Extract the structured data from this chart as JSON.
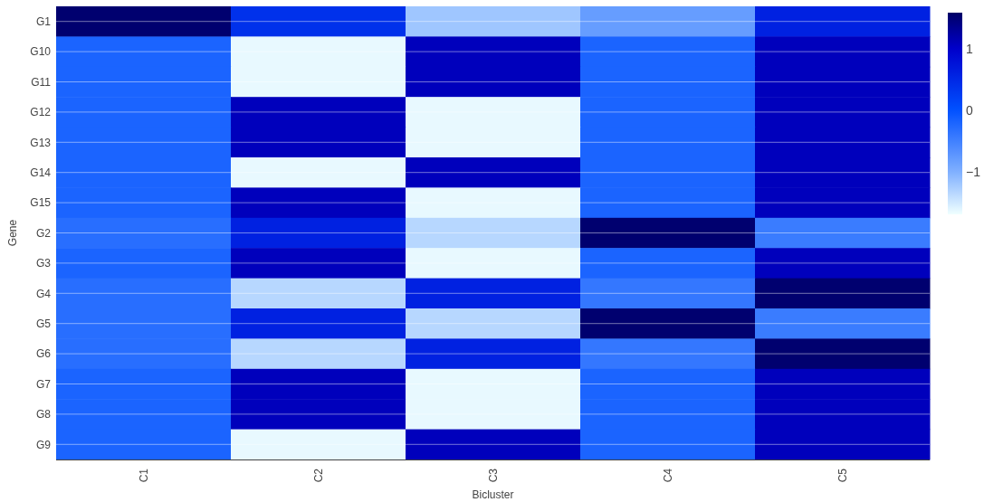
{
  "chart_data": {
    "type": "heatmap",
    "xlabel": "Bicluster",
    "ylabel": "Gene",
    "categories": [
      "C1",
      "C2",
      "C3",
      "C4",
      "C5"
    ],
    "y_categories": [
      "G1",
      "G10",
      "G11",
      "G12",
      "G13",
      "G14",
      "G15",
      "G2",
      "G3",
      "G4",
      "G5",
      "G6",
      "G7",
      "G8",
      "G9"
    ],
    "cells": [
      [
        1.55,
        0.4,
        -1.2,
        -0.8,
        0.6
      ],
      [
        -0.2,
        -1.65,
        1.1,
        -0.2,
        1.1
      ],
      [
        -0.2,
        -1.65,
        1.1,
        -0.2,
        1.1
      ],
      [
        -0.2,
        1.1,
        -1.65,
        -0.2,
        1.1
      ],
      [
        -0.2,
        1.1,
        -1.65,
        -0.2,
        1.1
      ],
      [
        -0.2,
        -1.65,
        1.1,
        -0.2,
        1.1
      ],
      [
        -0.2,
        1.1,
        -1.65,
        -0.2,
        1.1
      ],
      [
        -0.3,
        0.6,
        -1.35,
        1.55,
        -0.45
      ],
      [
        -0.2,
        1.1,
        -1.65,
        -0.2,
        1.1
      ],
      [
        -0.3,
        -1.35,
        0.6,
        -0.4,
        1.55
      ],
      [
        -0.3,
        0.6,
        -1.35,
        1.55,
        -0.45
      ],
      [
        -0.3,
        -1.35,
        0.6,
        -0.4,
        1.55
      ],
      [
        -0.2,
        1.1,
        -1.65,
        -0.2,
        1.1
      ],
      [
        -0.2,
        1.1,
        -1.65,
        -0.2,
        1.1
      ],
      [
        -0.2,
        -1.65,
        1.1,
        -0.2,
        1.1
      ]
    ],
    "clim": [
      -1.7,
      1.6
    ],
    "cticks": [
      -1,
      0,
      1
    ],
    "grid": "y"
  }
}
